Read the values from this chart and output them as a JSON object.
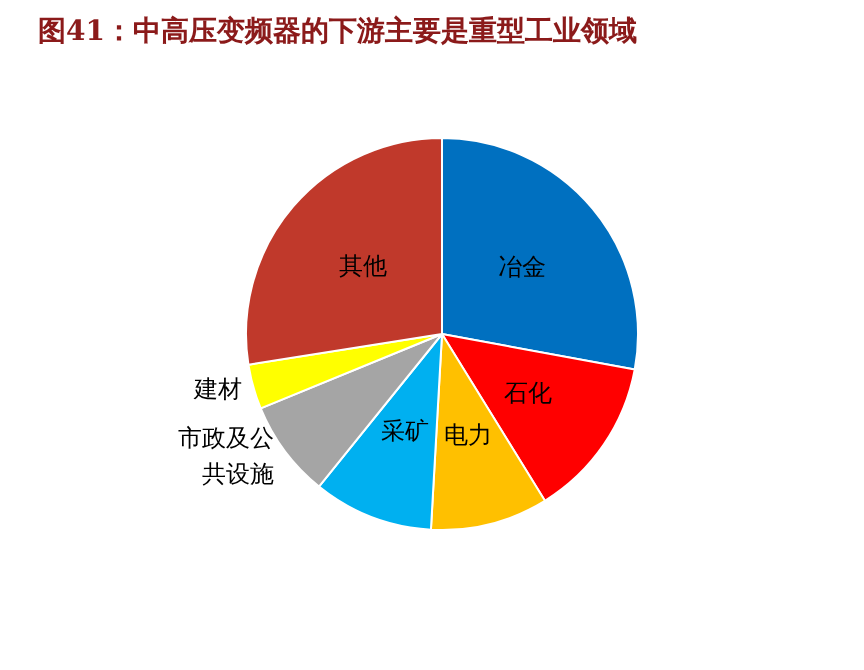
{
  "chart_data": {
    "type": "pie",
    "title": "图41：中高压变频器的下游主要是重型工业领域",
    "categories": [
      "冶金",
      "石化",
      "电力",
      "采矿",
      "市政及公共设施",
      "建材",
      "其他"
    ],
    "values": [
      27.9,
      13.3,
      9.7,
      9.9,
      8.0,
      3.7,
      27.5
    ],
    "colors": [
      "#0070c0",
      "#ff0000",
      "#ffc000",
      "#00b0f0",
      "#a5a5a5",
      "#ffff00",
      "#c0392b"
    ],
    "legend": false
  }
}
